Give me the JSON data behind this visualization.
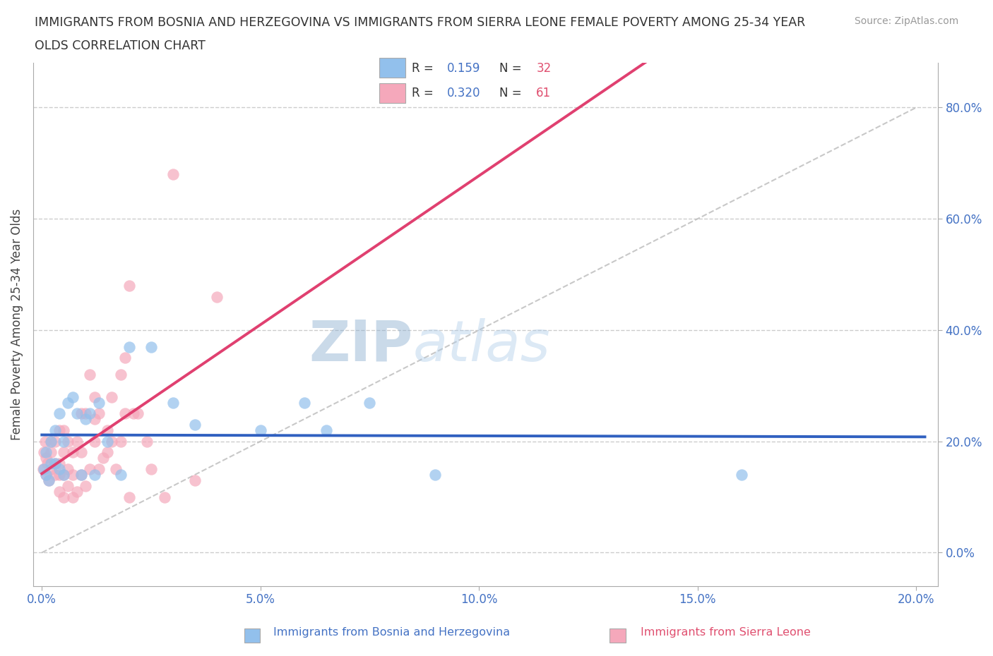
{
  "title_line1": "IMMIGRANTS FROM BOSNIA AND HERZEGOVINA VS IMMIGRANTS FROM SIERRA LEONE FEMALE POVERTY AMONG 25-34 YEAR",
  "title_line2": "OLDS CORRELATION CHART",
  "source": "Source: ZipAtlas.com",
  "ylabel": "Female Poverty Among 25-34 Year Olds",
  "xlim": [
    -0.002,
    0.205
  ],
  "ylim": [
    -0.06,
    0.88
  ],
  "xticks": [
    0.0,
    0.05,
    0.1,
    0.15,
    0.2
  ],
  "yticks": [
    0.0,
    0.2,
    0.4,
    0.6,
    0.8
  ],
  "xticklabels": [
    "0.0%",
    "5.0%",
    "10.0%",
    "15.0%",
    "20.0%"
  ],
  "yticklabels": [
    "0.0%",
    "20.0%",
    "40.0%",
    "60.0%",
    "80.0%"
  ],
  "color_bosnia": "#92C0EC",
  "color_sierra": "#F5A8BB",
  "line_color_bosnia": "#3060C0",
  "line_color_sierra": "#E04070",
  "watermark_zip": "ZIP",
  "watermark_atlas": "atlas",
  "bosnia_label": "Immigrants from Bosnia and Herzegovina",
  "sierra_label": "Immigrants from Sierra Leone",
  "legend_r_bosnia": "0.159",
  "legend_n_bosnia": "32",
  "legend_r_sierra": "0.320",
  "legend_n_sierra": "61",
  "bosnia_x": [
    0.0005,
    0.001,
    0.001,
    0.0015,
    0.002,
    0.002,
    0.003,
    0.003,
    0.004,
    0.004,
    0.005,
    0.005,
    0.006,
    0.007,
    0.008,
    0.009,
    0.01,
    0.011,
    0.012,
    0.013,
    0.015,
    0.018,
    0.02,
    0.025,
    0.03,
    0.035,
    0.05,
    0.06,
    0.065,
    0.075,
    0.09,
    0.16
  ],
  "bosnia_y": [
    0.15,
    0.18,
    0.14,
    0.13,
    0.16,
    0.2,
    0.16,
    0.22,
    0.15,
    0.25,
    0.14,
    0.2,
    0.27,
    0.28,
    0.25,
    0.14,
    0.24,
    0.25,
    0.14,
    0.27,
    0.2,
    0.14,
    0.37,
    0.37,
    0.27,
    0.23,
    0.22,
    0.27,
    0.22,
    0.27,
    0.14,
    0.14
  ],
  "sierra_x": [
    0.0003,
    0.0005,
    0.0008,
    0.001,
    0.001,
    0.0012,
    0.0015,
    0.002,
    0.002,
    0.002,
    0.003,
    0.003,
    0.003,
    0.004,
    0.004,
    0.004,
    0.004,
    0.005,
    0.005,
    0.005,
    0.005,
    0.006,
    0.006,
    0.006,
    0.007,
    0.007,
    0.007,
    0.008,
    0.008,
    0.009,
    0.009,
    0.009,
    0.01,
    0.01,
    0.011,
    0.011,
    0.012,
    0.012,
    0.012,
    0.013,
    0.013,
    0.014,
    0.015,
    0.015,
    0.016,
    0.016,
    0.017,
    0.018,
    0.018,
    0.019,
    0.019,
    0.02,
    0.02,
    0.021,
    0.022,
    0.024,
    0.025,
    0.028,
    0.03,
    0.035,
    0.04
  ],
  "sierra_y": [
    0.15,
    0.18,
    0.2,
    0.14,
    0.17,
    0.16,
    0.13,
    0.15,
    0.18,
    0.2,
    0.14,
    0.16,
    0.2,
    0.11,
    0.14,
    0.16,
    0.22,
    0.1,
    0.14,
    0.18,
    0.22,
    0.12,
    0.15,
    0.2,
    0.1,
    0.14,
    0.18,
    0.11,
    0.2,
    0.14,
    0.18,
    0.25,
    0.12,
    0.25,
    0.15,
    0.32,
    0.2,
    0.24,
    0.28,
    0.15,
    0.25,
    0.17,
    0.18,
    0.22,
    0.2,
    0.28,
    0.15,
    0.2,
    0.32,
    0.25,
    0.35,
    0.48,
    0.1,
    0.25,
    0.25,
    0.2,
    0.15,
    0.1,
    0.68,
    0.13,
    0.46
  ]
}
